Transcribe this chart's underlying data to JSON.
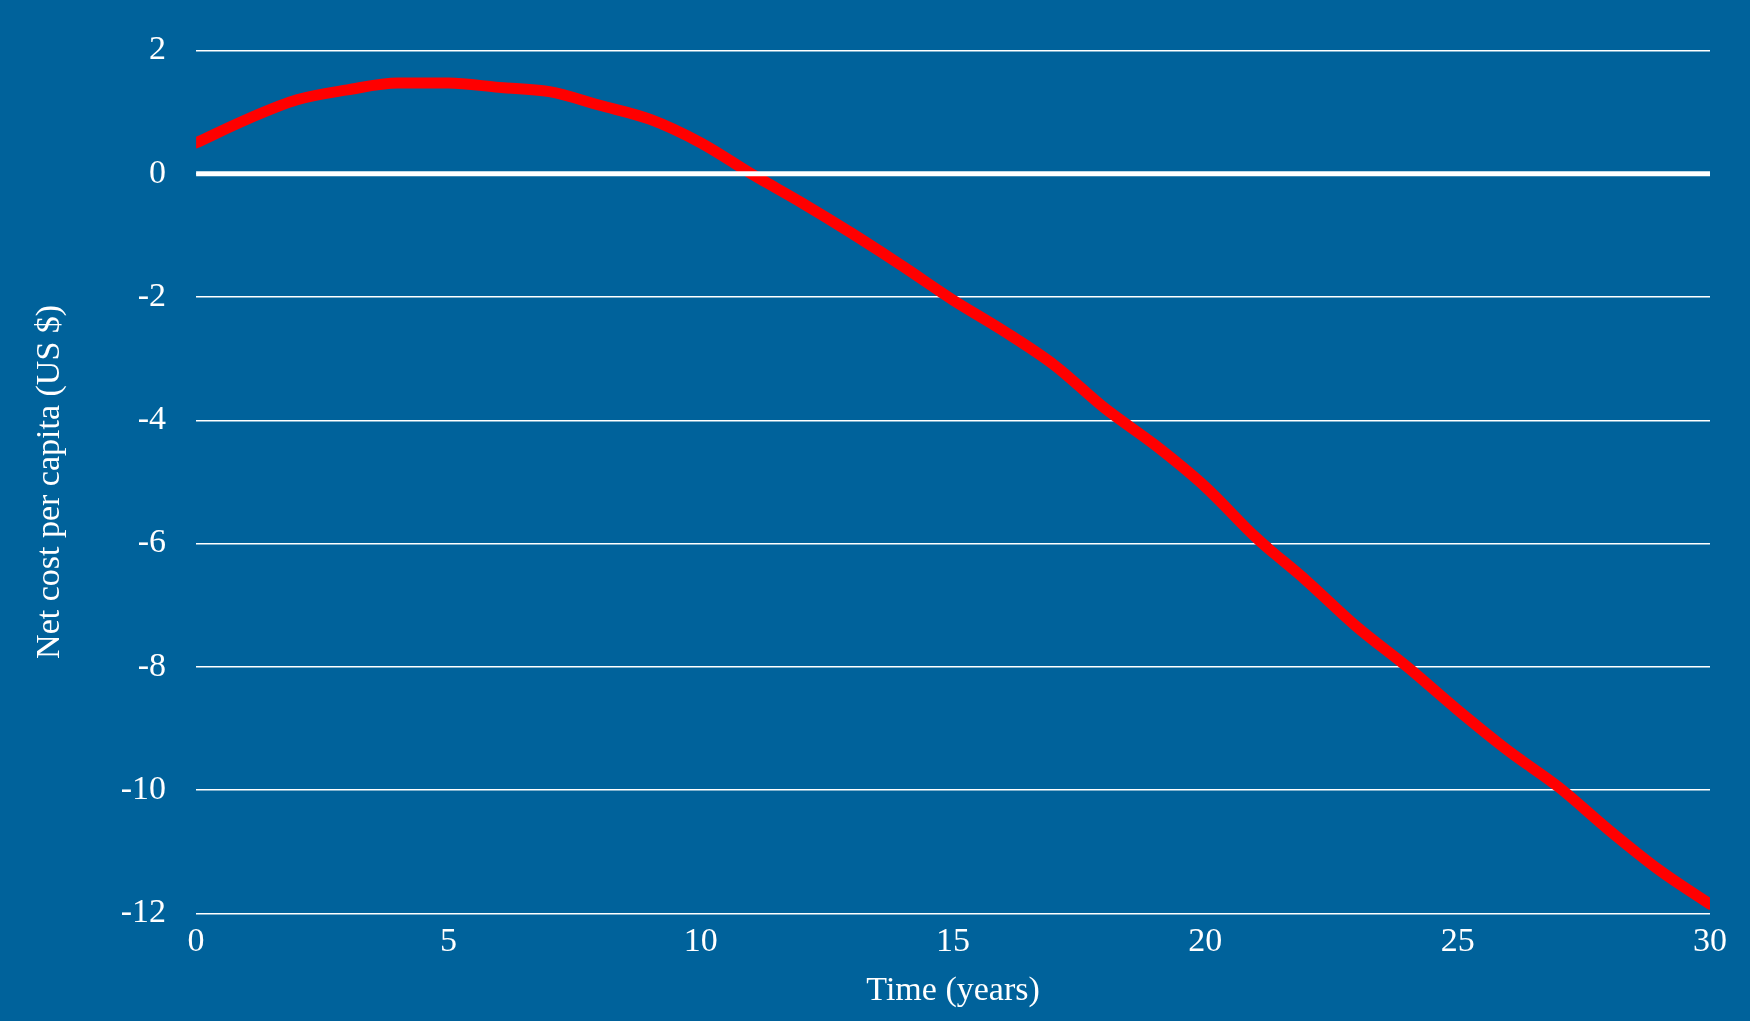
{
  "chart_data": {
    "type": "line",
    "xlabel": "Time (years)",
    "ylabel": "Net cost per capita (US $)",
    "x": [
      0,
      1,
      2,
      3,
      4,
      5,
      6,
      7,
      8,
      9,
      10,
      11,
      12,
      13,
      14,
      15,
      16,
      17,
      18,
      19,
      20,
      21,
      22,
      23,
      24,
      25,
      26,
      27,
      28,
      29,
      30
    ],
    "series": [
      {
        "color": "#ff0000",
        "values": [
          0.5,
          0.88,
          1.2,
          1.36,
          1.47,
          1.47,
          1.4,
          1.33,
          1.11,
          0.88,
          0.5,
          0,
          -0.47,
          -0.97,
          -1.5,
          -2.05,
          -2.55,
          -3.1,
          -3.8,
          -4.4,
          -5.08,
          -5.9,
          -6.6,
          -7.35,
          -8.0,
          -8.7,
          -9.36,
          -9.95,
          -10.65,
          -11.3,
          -11.85
        ]
      }
    ],
    "xlim": [
      0,
      30
    ],
    "xticks": [
      0,
      5,
      10,
      15,
      20,
      25,
      30
    ],
    "ylim": [
      -12,
      2
    ],
    "yticks": [
      -12,
      -10,
      -8,
      -6,
      -4,
      -2,
      0,
      2
    ],
    "ref_lines": [
      {
        "axis": "y",
        "value": 0,
        "color": "#ffffff"
      }
    ],
    "grid": "y",
    "legend": false,
    "marker": "none",
    "line_style": "solid"
  }
}
